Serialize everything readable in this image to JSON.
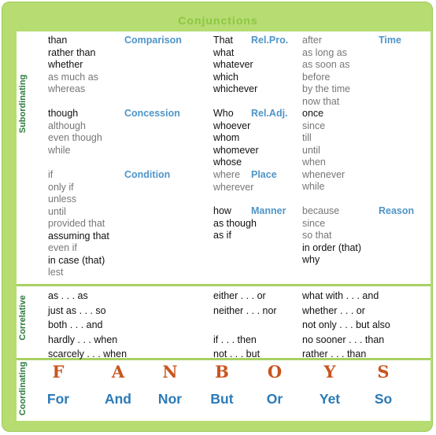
{
  "title": "Conjunctions",
  "side_labels": {
    "subordinating": "Subordinating",
    "correlative": "Correlative",
    "coordinating": "Coordinating"
  },
  "headers": {
    "comparison": "Comparison",
    "concession": "Concession",
    "condition": "Condition",
    "rel_pro": "Rel.Pro.",
    "rel_adj": "Rel.Adj.",
    "place": "Place",
    "manner": "Manner",
    "time": "Time",
    "reason": "Reason"
  },
  "comparison": [
    {
      "t": "than",
      "s": "k"
    },
    {
      "t": "rather than",
      "s": "k"
    },
    {
      "t": "whether",
      "s": "k"
    },
    {
      "t": "as much as",
      "s": "g"
    },
    {
      "t": "whereas",
      "s": "g"
    }
  ],
  "concession": [
    {
      "t": "though",
      "s": "k"
    },
    {
      "t": "although",
      "s": "g"
    },
    {
      "t": "even though",
      "s": "g"
    },
    {
      "t": "while",
      "s": "g"
    }
  ],
  "condition": [
    {
      "t": "if",
      "s": "g"
    },
    {
      "t": "only if",
      "s": "g"
    },
    {
      "t": "unless",
      "s": "g"
    },
    {
      "t": "until",
      "s": "g"
    },
    {
      "t": "provided that",
      "s": "g"
    },
    {
      "t": "assuming that",
      "s": "k"
    },
    {
      "t": "even if",
      "s": "g"
    },
    {
      "t": "in case (that)",
      "s": "k"
    },
    {
      "t": "lest",
      "s": "g"
    }
  ],
  "rel_pro": [
    {
      "t": "That",
      "s": "k"
    },
    {
      "t": "what",
      "s": "k"
    },
    {
      "t": "whatever",
      "s": "k"
    },
    {
      "t": "which",
      "s": "k"
    },
    {
      "t": "whichever",
      "s": "k"
    }
  ],
  "rel_adj": [
    {
      "t": "Who",
      "s": "k"
    },
    {
      "t": "whoever",
      "s": "k"
    },
    {
      "t": "whom",
      "s": "k"
    },
    {
      "t": "whomever",
      "s": "k"
    },
    {
      "t": "whose",
      "s": "k"
    }
  ],
  "place": [
    {
      "t": "where",
      "s": "g"
    },
    {
      "t": "wherever",
      "s": "g"
    }
  ],
  "manner": [
    {
      "t": "how",
      "s": "k"
    },
    {
      "t": "as though",
      "s": "k"
    },
    {
      "t": "as if",
      "s": "k"
    }
  ],
  "time": [
    {
      "t": "after",
      "s": "g"
    },
    {
      "t": "as long as",
      "s": "g"
    },
    {
      "t": "as soon as",
      "s": "g"
    },
    {
      "t": "before",
      "s": "g"
    },
    {
      "t": "by the time",
      "s": "g"
    },
    {
      "t": "now that",
      "s": "g"
    },
    {
      "t": "once",
      "s": "k"
    },
    {
      "t": "since",
      "s": "g"
    },
    {
      "t": "till",
      "s": "g"
    },
    {
      "t": "until",
      "s": "g"
    },
    {
      "t": "when",
      "s": "g"
    },
    {
      "t": "whenever",
      "s": "g"
    },
    {
      "t": "while",
      "s": "g"
    }
  ],
  "reason": [
    {
      "t": "because",
      "s": "g"
    },
    {
      "t": "since",
      "s": "g"
    },
    {
      "t": "so that",
      "s": "g"
    },
    {
      "t": "in order (that)",
      "s": "k"
    },
    {
      "t": "why",
      "s": "k"
    }
  ],
  "correlative": {
    "col1": [
      "as . . . as",
      "just as . . . so",
      "both . . . and",
      "hardly . . . when",
      "scarcely . . . when"
    ],
    "col2": [
      "either . . . or",
      "neither . . . nor",
      "",
      "if . . . then",
      "not . . . but"
    ],
    "col3": [
      "what with . . . and",
      "whether . . . or",
      "not only . . . but also",
      "no sooner . . . than",
      "rather . . . than"
    ]
  },
  "fanboys_letters": [
    "F",
    "A",
    "N",
    "B",
    "O",
    "Y",
    "S"
  ],
  "fanboys_words": [
    "For",
    "And",
    "Nor",
    "But",
    "Or",
    "Yet",
    "So"
  ],
  "colors": {
    "title": "#8cc63f",
    "header": "#4f95c8",
    "letters": "#c8551f",
    "words": "#2a7ab7",
    "border": "#b6dc72"
  }
}
